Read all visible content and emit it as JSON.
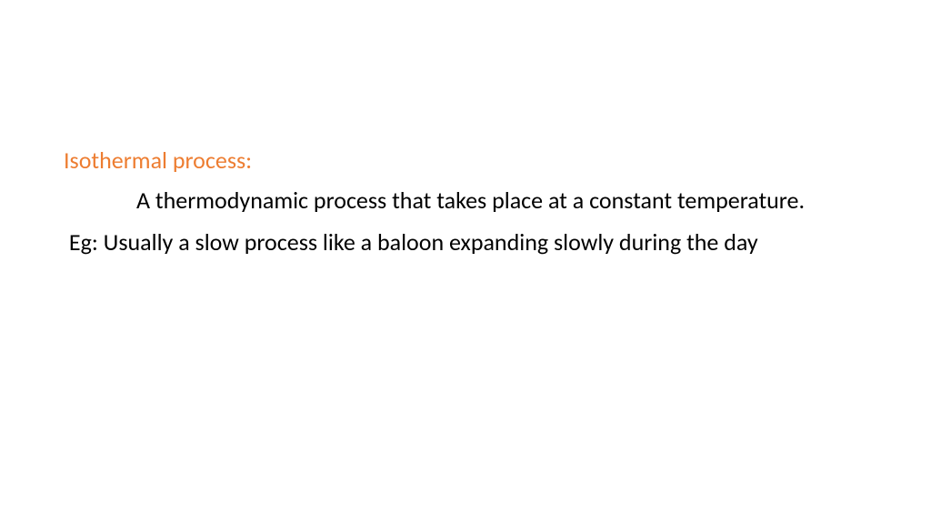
{
  "slide": {
    "heading": {
      "text": "Isothermal process:",
      "color": "#ed7d31",
      "fontsize": 26,
      "fontweight": 400
    },
    "body": [
      {
        "text": "A thermodynamic process that takes place at a constant temperature.",
        "color": "#000000",
        "indent": true,
        "leading_space": false
      },
      {
        "text": "Eg: Usually a slow process like a baloon expanding slowly during the day",
        "color": "#000000",
        "indent": false,
        "leading_space": true
      }
    ],
    "background_color": "#ffffff",
    "body_fontsize": 26
  }
}
